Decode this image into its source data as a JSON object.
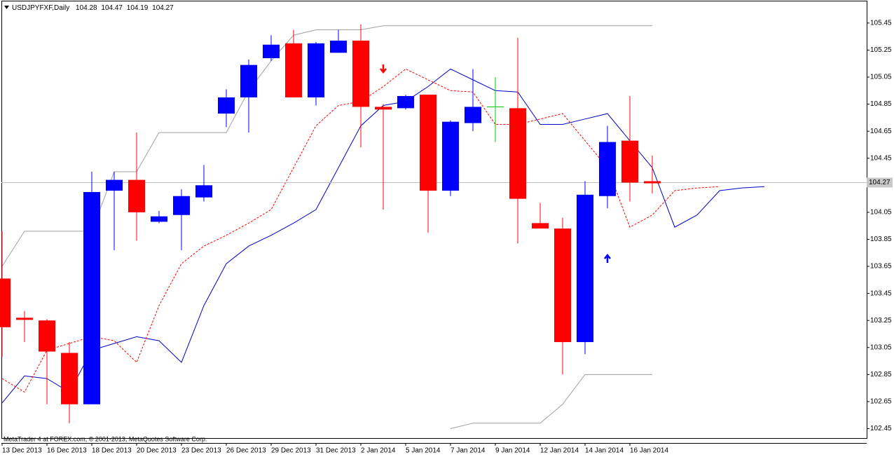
{
  "chart_data": {
    "type": "candlestick",
    "title": "USDJPYFXF,Daily",
    "credit": "MetaTrader 4 at FOREX.com, © 2001-2013, MetaQuotes Software Corp.",
    "categories": [
      "13 Dec 2013",
      null,
      "16 Dec 2013",
      null,
      "18 Dec 2013",
      null,
      "20 Dec 2013",
      null,
      "23 Dec 2013",
      null,
      "26 Dec 2013",
      null,
      "29 Dec 2013",
      null,
      "31 Dec 2013",
      null,
      "2 Jan 2014",
      null,
      "5 Jan 2014",
      null,
      "7 Jan 2014",
      null,
      "9 Jan 2014",
      null,
      "12 Jan 2014",
      null,
      "14 Jan 2014",
      null,
      "16 Jan 2014",
      null,
      null,
      null,
      null,
      null,
      null
    ],
    "open": [
      103.56,
      103.27,
      103.25,
      103.01,
      102.63,
      104.21,
      104.29,
      103.98,
      104.03,
      104.16,
      104.78,
      104.9,
      105.19,
      105.3,
      104.9,
      105.23,
      105.32,
      104.83,
      104.82,
      104.92,
      104.21,
      104.71,
      104.83,
      104.82,
      103.97,
      103.93,
      103.09,
      104.17,
      104.58,
      104.28,
      null,
      null,
      null,
      null,
      null
    ],
    "high": [
      103.91,
      103.32,
      103.26,
      103.09,
      104.35,
      104.35,
      104.64,
      104.06,
      104.22,
      104.4,
      104.96,
      105.18,
      105.36,
      105.4,
      105.31,
      105.4,
      105.44,
      104.85,
      104.92,
      104.92,
      104.73,
      105.11,
      105.05,
      105.34,
      104.12,
      104.01,
      104.28,
      104.69,
      104.91,
      104.47,
      null,
      null,
      null,
      null,
      null
    ],
    "low": [
      102.98,
      103.09,
      102.63,
      102.49,
      102.63,
      103.77,
      103.84,
      103.97,
      103.77,
      104.13,
      104.68,
      104.64,
      105.17,
      104.9,
      104.84,
      105.23,
      104.53,
      104.07,
      104.81,
      103.9,
      104.17,
      104.65,
      104.57,
      103.82,
      103.93,
      102.85,
      103.0,
      104.08,
      104.13,
      104.19,
      null,
      null,
      null,
      null,
      null
    ],
    "close": [
      103.2,
      103.26,
      103.02,
      102.63,
      104.2,
      104.29,
      104.05,
      104.02,
      104.17,
      104.25,
      104.9,
      105.14,
      105.29,
      104.9,
      105.3,
      105.32,
      104.83,
      104.81,
      104.91,
      104.21,
      104.72,
      104.83,
      104.83,
      104.15,
      103.93,
      103.09,
      104.18,
      104.57,
      104.27,
      104.27,
      null,
      null,
      null,
      null,
      null
    ],
    "up_color": "#0000ff",
    "down_color": "#ff0000",
    "doji_color": "#00c800",
    "series": [
      {
        "color": "#0000c8",
        "style": "solid",
        "values": [
          102.64,
          102.84,
          102.82,
          102.72,
          103.03,
          103.08,
          103.13,
          103.1,
          102.94,
          103.36,
          103.67,
          103.8,
          103.88,
          103.97,
          104.07,
          104.38,
          104.69,
          104.84,
          104.87,
          104.98,
          105.11,
          105.03,
          104.95,
          104.94,
          104.7,
          104.7,
          104.74,
          104.78,
          104.58,
          104.38,
          103.94,
          104.03,
          104.21,
          104.23,
          104.24
        ]
      },
      {
        "color": "#ff0000",
        "style": "dashed",
        "values": [
          102.82,
          102.72,
          103.03,
          103.08,
          103.13,
          103.1,
          102.94,
          103.36,
          103.67,
          103.8,
          103.88,
          103.97,
          104.07,
          104.38,
          104.69,
          104.84,
          104.87,
          104.98,
          105.11,
          105.03,
          104.95,
          104.94,
          104.7,
          104.7,
          104.74,
          104.78,
          104.58,
          104.38,
          103.94,
          104.03,
          104.21,
          104.23,
          104.24,
          null,
          null
        ]
      },
      {
        "color": "#a0a0a0",
        "style": "solid",
        "values": [
          103.65,
          103.91,
          103.91,
          103.91,
          103.91,
          104.35,
          104.35,
          104.64,
          104.64,
          104.64,
          104.64,
          104.95,
          105.17,
          105.36,
          105.4,
          105.4,
          105.4,
          105.43,
          105.43,
          105.43,
          105.43,
          105.43,
          105.43,
          105.43,
          105.43,
          105.43,
          105.43,
          105.43,
          105.43,
          105.43,
          null,
          null,
          null,
          null,
          null
        ]
      },
      {
        "color": "#a0a0a0",
        "style": "solid",
        "values": [
          null,
          null,
          null,
          null,
          null,
          null,
          null,
          null,
          null,
          null,
          null,
          null,
          null,
          null,
          null,
          null,
          null,
          null,
          null,
          null,
          102.45,
          102.49,
          102.49,
          102.49,
          102.49,
          102.63,
          102.85,
          102.85,
          102.85,
          102.85,
          null,
          null,
          null,
          null,
          null
        ]
      }
    ],
    "ylim": [
      102.38,
      105.61
    ],
    "yticks": [
      102.45,
      102.65,
      102.85,
      103.05,
      103.25,
      103.45,
      103.65,
      103.85,
      104.05,
      104.25,
      104.45,
      104.65,
      104.85,
      105.05,
      105.25,
      105.45
    ],
    "price_line": true
  }
}
